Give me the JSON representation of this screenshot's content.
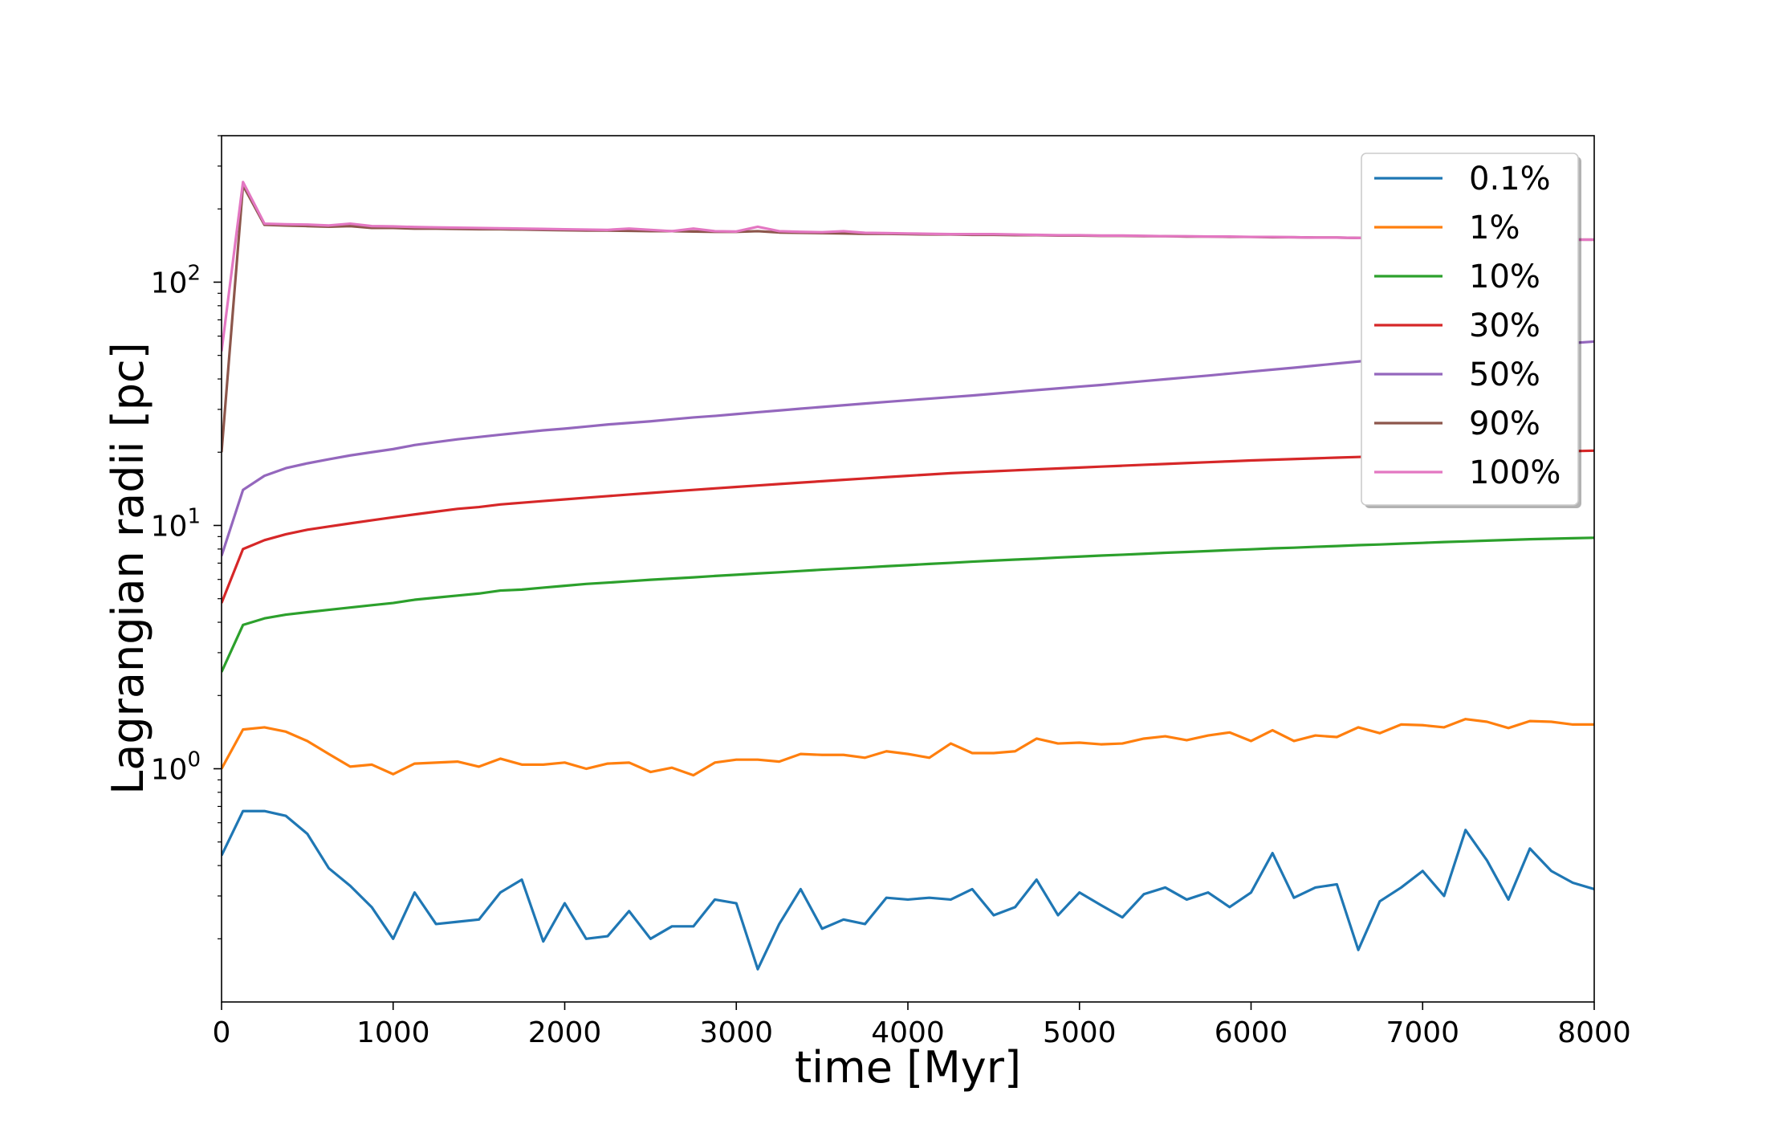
{
  "chart_data": {
    "type": "line",
    "title": "",
    "xlabel": "time [Myr]",
    "ylabel": "Lagrangian radii [pc]",
    "xlim": [
      0,
      8000
    ],
    "ylim": [
      0.11,
      400
    ],
    "yscale": "log",
    "grid": false,
    "legend": "top-right",
    "xticks": [
      0,
      1000,
      2000,
      3000,
      4000,
      5000,
      6000,
      7000,
      8000
    ],
    "yticks": [
      {
        "value": 1,
        "base": "10",
        "exp": "0"
      },
      {
        "value": 10,
        "base": "10",
        "exp": "1"
      },
      {
        "value": 100,
        "base": "10",
        "exp": "2"
      }
    ],
    "x": [
      0,
      125,
      250,
      375,
      500,
      625,
      750,
      875,
      1000,
      1125,
      1250,
      1375,
      1500,
      1625,
      1750,
      1875,
      2000,
      2125,
      2250,
      2375,
      2500,
      2625,
      2750,
      2875,
      3000,
      3125,
      3250,
      3375,
      3500,
      3625,
      3750,
      3875,
      4000,
      4125,
      4250,
      4375,
      4500,
      4625,
      4750,
      4875,
      5000,
      5125,
      5250,
      5375,
      5500,
      5625,
      5750,
      5875,
      6000,
      6125,
      6250,
      6375,
      6500,
      6625,
      6750,
      6875,
      7000,
      7125,
      7250,
      7375,
      7500,
      7625,
      7750,
      7875,
      8000
    ],
    "series": [
      {
        "name": "0.1%",
        "color": "#1f77b4",
        "values": [
          0.44,
          0.67,
          0.67,
          0.64,
          0.54,
          0.39,
          0.33,
          0.27,
          0.2,
          0.31,
          0.23,
          0.235,
          0.24,
          0.31,
          0.35,
          0.195,
          0.28,
          0.2,
          0.205,
          0.26,
          0.2,
          0.225,
          0.225,
          0.29,
          0.28,
          0.15,
          0.23,
          0.32,
          0.22,
          0.24,
          0.23,
          0.295,
          0.29,
          0.295,
          0.29,
          0.32,
          0.25,
          0.27,
          0.35,
          0.25,
          0.31,
          0.275,
          0.245,
          0.305,
          0.325,
          0.29,
          0.31,
          0.27,
          0.31,
          0.45,
          0.295,
          0.325,
          0.335,
          0.18,
          0.285,
          0.325,
          0.38,
          0.3,
          0.56,
          0.42,
          0.29,
          0.47,
          0.38,
          0.34,
          0.32
        ]
      },
      {
        "name": "1%",
        "color": "#ff7f0e",
        "values": [
          1.0,
          1.45,
          1.48,
          1.42,
          1.3,
          1.15,
          1.02,
          1.04,
          0.95,
          1.05,
          1.06,
          1.07,
          1.02,
          1.1,
          1.04,
          1.04,
          1.06,
          1.0,
          1.05,
          1.06,
          0.97,
          1.01,
          0.94,
          1.06,
          1.09,
          1.09,
          1.07,
          1.15,
          1.14,
          1.14,
          1.11,
          1.18,
          1.15,
          1.11,
          1.27,
          1.16,
          1.16,
          1.18,
          1.33,
          1.27,
          1.28,
          1.26,
          1.27,
          1.33,
          1.36,
          1.31,
          1.37,
          1.41,
          1.3,
          1.44,
          1.3,
          1.37,
          1.35,
          1.48,
          1.4,
          1.52,
          1.51,
          1.48,
          1.6,
          1.56,
          1.47,
          1.57,
          1.56,
          1.52,
          1.52
        ]
      },
      {
        "name": "10%",
        "color": "#2ca02c",
        "values": [
          2.5,
          3.9,
          4.15,
          4.3,
          4.4,
          4.5,
          4.6,
          4.7,
          4.8,
          4.95,
          5.05,
          5.15,
          5.25,
          5.4,
          5.45,
          5.55,
          5.65,
          5.75,
          5.82,
          5.9,
          5.98,
          6.05,
          6.12,
          6.2,
          6.27,
          6.35,
          6.42,
          6.5,
          6.58,
          6.65,
          6.72,
          6.8,
          6.87,
          6.95,
          7.02,
          7.1,
          7.17,
          7.24,
          7.3,
          7.38,
          7.45,
          7.52,
          7.58,
          7.65,
          7.72,
          7.78,
          7.85,
          7.92,
          7.98,
          8.05,
          8.1,
          8.17,
          8.23,
          8.3,
          8.35,
          8.42,
          8.48,
          8.55,
          8.6,
          8.66,
          8.72,
          8.78,
          8.82,
          8.86,
          8.9
        ]
      },
      {
        "name": "30%",
        "color": "#d62728",
        "values": [
          4.8,
          8.0,
          8.7,
          9.2,
          9.6,
          9.9,
          10.2,
          10.5,
          10.8,
          11.1,
          11.4,
          11.7,
          11.9,
          12.2,
          12.4,
          12.6,
          12.8,
          13.0,
          13.2,
          13.4,
          13.6,
          13.8,
          14.0,
          14.2,
          14.4,
          14.6,
          14.8,
          15.0,
          15.2,
          15.4,
          15.6,
          15.8,
          16.0,
          16.2,
          16.4,
          16.55,
          16.7,
          16.85,
          17.0,
          17.15,
          17.3,
          17.45,
          17.6,
          17.75,
          17.9,
          18.05,
          18.2,
          18.35,
          18.5,
          18.62,
          18.75,
          18.88,
          19.0,
          19.12,
          19.25,
          19.37,
          19.5,
          19.6,
          19.7,
          19.8,
          19.9,
          20.0,
          20.1,
          20.2,
          20.3
        ]
      },
      {
        "name": "50%",
        "color": "#9467bd",
        "values": [
          7.5,
          14.0,
          16.0,
          17.2,
          18.0,
          18.7,
          19.4,
          20.0,
          20.6,
          21.4,
          22.0,
          22.6,
          23.1,
          23.6,
          24.1,
          24.6,
          25.0,
          25.5,
          26.0,
          26.4,
          26.8,
          27.3,
          27.8,
          28.2,
          28.7,
          29.2,
          29.7,
          30.2,
          30.7,
          31.2,
          31.7,
          32.2,
          32.7,
          33.2,
          33.7,
          34.2,
          34.8,
          35.4,
          36.0,
          36.6,
          37.2,
          37.8,
          38.5,
          39.2,
          39.9,
          40.6,
          41.3,
          42.1,
          42.9,
          43.7,
          44.5,
          45.4,
          46.3,
          47.2,
          48.1,
          49.0,
          49.9,
          50.8,
          51.7,
          52.6,
          53.5,
          54.4,
          55.3,
          56.2,
          57.0
        ]
      },
      {
        "name": "90%",
        "color": "#8c564b",
        "values": [
          20.0,
          250.0,
          172.0,
          171.0,
          170.0,
          169.0,
          170.0,
          167.0,
          167.0,
          166.0,
          166.0,
          165.5,
          165.0,
          165.0,
          164.5,
          164.0,
          163.5,
          163.0,
          163.0,
          162.5,
          162.0,
          162.0,
          161.5,
          161.0,
          161.0,
          162.0,
          160.0,
          159.5,
          159.0,
          158.5,
          158.0,
          158.0,
          157.5,
          157.0,
          157.0,
          156.5,
          156.5,
          156.0,
          156.0,
          155.5,
          155.5,
          155.0,
          155.0,
          154.5,
          154.5,
          154.0,
          154.0,
          153.5,
          153.5,
          153.0,
          153.0,
          152.5,
          152.5,
          152.0,
          152.0,
          151.5,
          151.5,
          151.0,
          151.0,
          150.5,
          150.5,
          150.0,
          150.0,
          149.5,
          149.5
        ]
      },
      {
        "name": "100%",
        "color": "#e377c2",
        "values": [
          52.0,
          258.0,
          174.0,
          173.0,
          172.5,
          171.0,
          174.0,
          170.0,
          169.5,
          168.5,
          168.0,
          167.5,
          167.0,
          166.5,
          166.0,
          165.5,
          165.0,
          164.5,
          164.0,
          166.0,
          164.0,
          162.0,
          166.0,
          162.0,
          161.5,
          169.0,
          162.0,
          161.0,
          160.5,
          162.0,
          159.5,
          159.0,
          158.5,
          158.0,
          157.5,
          157.5,
          157.5,
          157.0,
          156.5,
          156.0,
          156.0,
          155.5,
          155.5,
          155.0,
          154.5,
          154.5,
          154.0,
          154.0,
          153.5,
          153.5,
          153.0,
          152.5,
          152.5,
          152.0,
          152.0,
          151.5,
          151.5,
          151.0,
          151.0,
          150.5,
          150.5,
          150.0,
          150.0,
          149.5,
          149.5
        ]
      }
    ]
  }
}
